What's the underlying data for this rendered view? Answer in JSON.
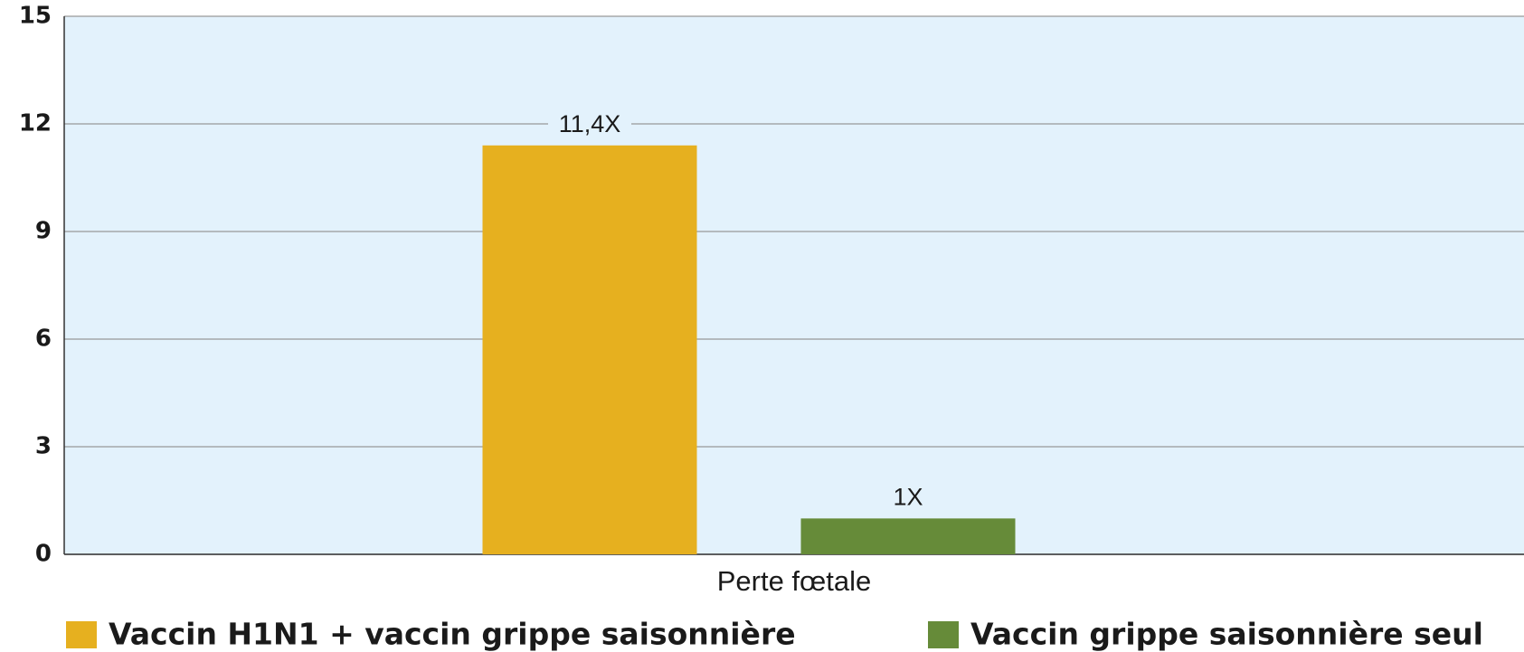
{
  "chart_data": {
    "type": "bar",
    "categories": [
      "Perte fœtale"
    ],
    "series": [
      {
        "name": "Vaccin H1N1 + vaccin grippe saisonnière",
        "color": "#e6b01f",
        "values": [
          11.4
        ],
        "value_labels": [
          "11,4X"
        ]
      },
      {
        "name": "Vaccin grippe saisonnière seul",
        "color": "#668b39",
        "values": [
          1
        ],
        "value_labels": [
          "1X"
        ]
      }
    ],
    "ylim": [
      0,
      15
    ],
    "yticks": [
      0,
      3,
      6,
      9,
      12,
      15
    ],
    "grid": true,
    "legend": "bottom"
  }
}
